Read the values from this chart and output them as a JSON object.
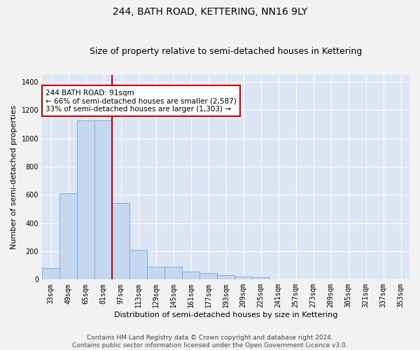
{
  "title": "244, BATH ROAD, KETTERING, NN16 9LY",
  "subtitle": "Size of property relative to semi-detached houses in Kettering",
  "xlabel": "Distribution of semi-detached houses by size in Kettering",
  "ylabel": "Number of semi-detached properties",
  "footer_line1": "Contains HM Land Registry data © Crown copyright and database right 2024.",
  "footer_line2": "Contains public sector information licensed under the Open Government Licence v3.0.",
  "categories": [
    "33sqm",
    "49sqm",
    "65sqm",
    "81sqm",
    "97sqm",
    "113sqm",
    "129sqm",
    "145sqm",
    "161sqm",
    "177sqm",
    "193sqm",
    "209sqm",
    "225sqm",
    "241sqm",
    "257sqm",
    "273sqm",
    "289sqm",
    "305sqm",
    "321sqm",
    "337sqm",
    "353sqm"
  ],
  "values": [
    82,
    610,
    1130,
    1130,
    540,
    210,
    90,
    90,
    55,
    45,
    30,
    20,
    15,
    0,
    0,
    0,
    0,
    0,
    0,
    0,
    0
  ],
  "bar_color": "#c5d8f0",
  "bar_edge_color": "#6aaad4",
  "annotation_text_line1": "244 BATH ROAD: 91sqm",
  "annotation_text_line2": "← 66% of semi-detached houses are smaller (2,587)",
  "annotation_text_line3": "33% of semi-detached houses are larger (1,303) →",
  "annotation_box_color": "#ffffff",
  "annotation_border_color": "#cc0000",
  "vline_color": "#cc0000",
  "vline_pos": 3.5,
  "ylim": [
    0,
    1450
  ],
  "yticks": [
    0,
    200,
    400,
    600,
    800,
    1000,
    1200,
    1400
  ],
  "background_color": "#dce6f5",
  "grid_color": "#ffffff",
  "fig_bg_color": "#f2f2f2",
  "title_fontsize": 10,
  "subtitle_fontsize": 9,
  "ylabel_fontsize": 8,
  "xlabel_fontsize": 8,
  "tick_fontsize": 7,
  "annotation_fontsize": 7.5,
  "footer_fontsize": 6.5
}
